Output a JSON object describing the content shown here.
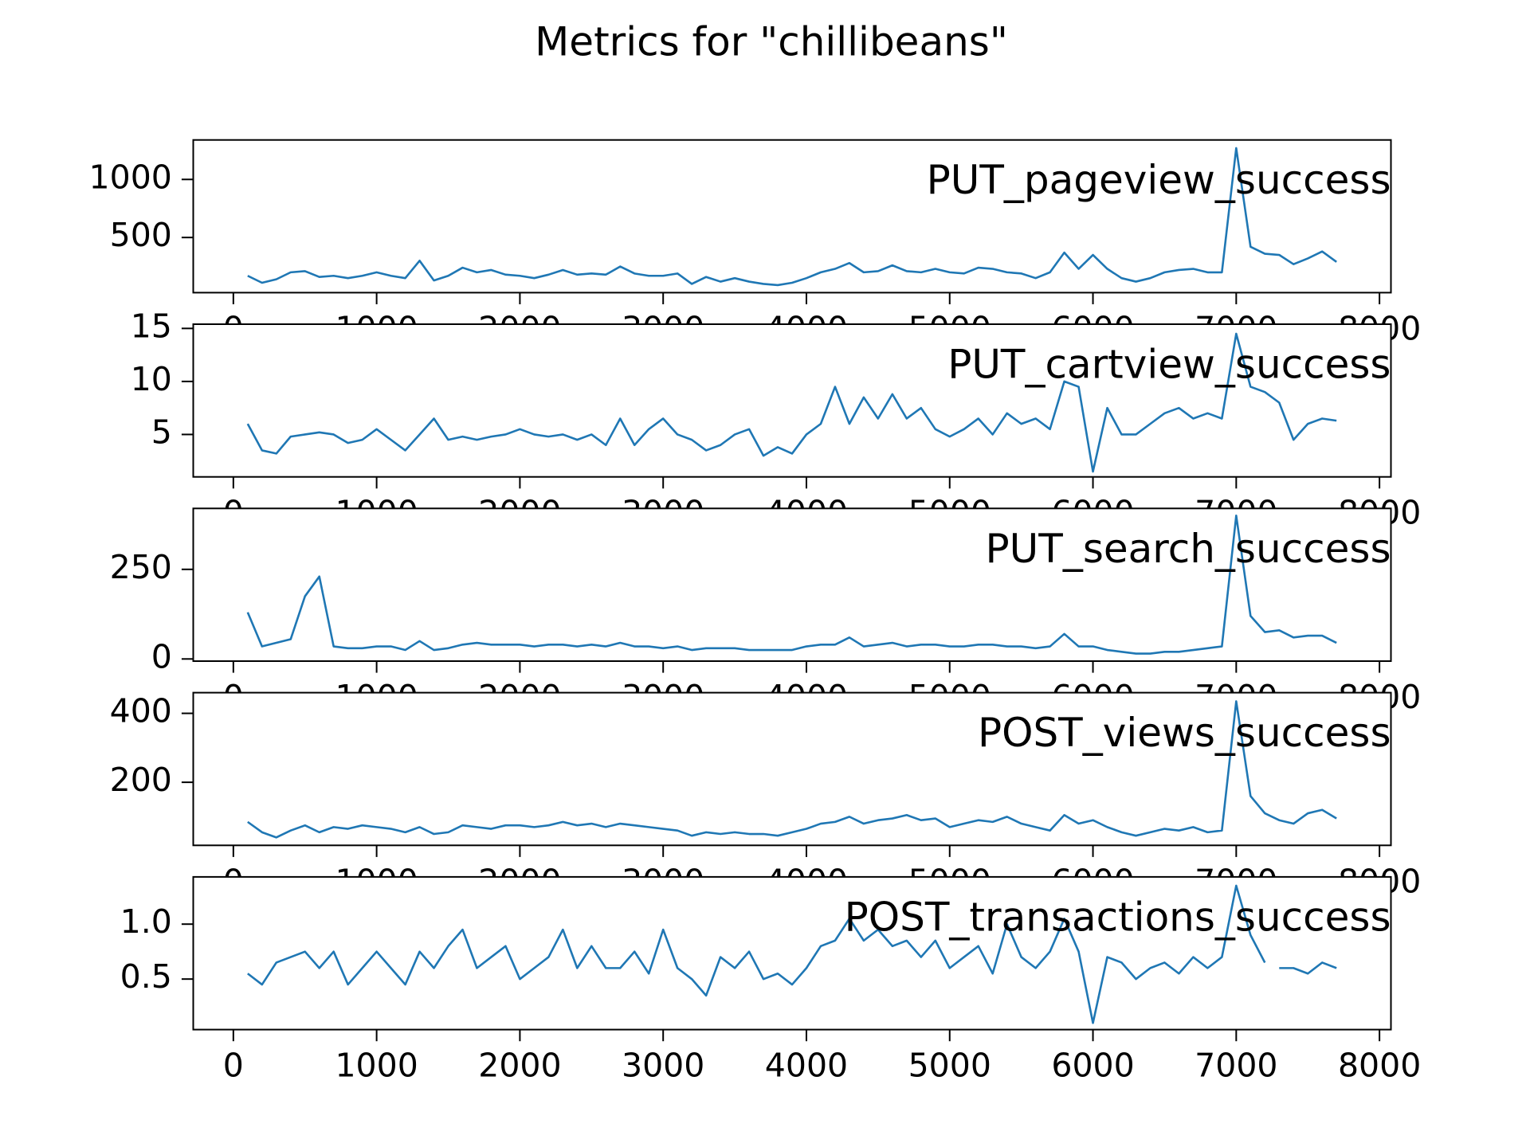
{
  "title": "Metrics for \"chillibeans\"",
  "chart_data": [
    {
      "type": "line",
      "annotation": "PUT_pageview_success",
      "x": [
        100,
        200,
        300,
        400,
        500,
        600,
        700,
        800,
        900,
        1000,
        1100,
        1200,
        1300,
        1400,
        1500,
        1600,
        1700,
        1800,
        1900,
        2000,
        2100,
        2200,
        2300,
        2400,
        2500,
        2600,
        2700,
        2800,
        2900,
        3000,
        3100,
        3200,
        3300,
        3400,
        3500,
        3600,
        3700,
        3800,
        3900,
        4000,
        4100,
        4200,
        4300,
        4400,
        4500,
        4600,
        4700,
        4800,
        4900,
        5000,
        5100,
        5200,
        5300,
        5400,
        5500,
        5600,
        5700,
        5800,
        5900,
        6000,
        6100,
        6200,
        6300,
        6400,
        6500,
        6600,
        6700,
        6800,
        6900,
        7000,
        7100,
        7200,
        7300,
        7400,
        7500,
        7600,
        7700
      ],
      "series": [
        {
          "color": "#1f77b4",
          "values": [
            170,
            110,
            140,
            200,
            210,
            160,
            170,
            150,
            170,
            200,
            170,
            150,
            300,
            130,
            170,
            240,
            200,
            220,
            180,
            170,
            150,
            180,
            220,
            180,
            190,
            180,
            250,
            190,
            170,
            170,
            190,
            100,
            160,
            120,
            150,
            120,
            100,
            90,
            110,
            150,
            200,
            230,
            280,
            200,
            210,
            260,
            210,
            200,
            230,
            200,
            190,
            240,
            230,
            200,
            190,
            150,
            200,
            370,
            230,
            350,
            230,
            150,
            120,
            150,
            200,
            220,
            230,
            200,
            200,
            1270,
            420,
            360,
            350,
            270,
            320,
            380,
            290
          ]
        }
      ],
      "xlim": [
        -280,
        8080
      ],
      "xticks": [
        0,
        1000,
        2000,
        3000,
        4000,
        5000,
        6000,
        7000,
        8000
      ],
      "ylim": [
        25,
        1340
      ],
      "yticks": [
        500,
        1000
      ]
    },
    {
      "type": "line",
      "annotation": "PUT_cartview_success",
      "x": [
        100,
        200,
        300,
        400,
        500,
        600,
        700,
        800,
        900,
        1000,
        1100,
        1200,
        1300,
        1400,
        1500,
        1600,
        1700,
        1800,
        1900,
        2000,
        2100,
        2200,
        2300,
        2400,
        2500,
        2600,
        2700,
        2800,
        2900,
        3000,
        3100,
        3200,
        3300,
        3400,
        3500,
        3600,
        3700,
        3800,
        3900,
        4000,
        4100,
        4200,
        4300,
        4400,
        4500,
        4600,
        4700,
        4800,
        4900,
        5000,
        5100,
        5200,
        5300,
        5400,
        5500,
        5600,
        5700,
        5800,
        5900,
        6000,
        6100,
        6200,
        6300,
        6400,
        6500,
        6600,
        6700,
        6800,
        6900,
        7000,
        7100,
        7200,
        7300,
        7400,
        7500,
        7600,
        7700
      ],
      "series": [
        {
          "color": "#1f77b4",
          "values": [
            6.0,
            3.5,
            3.2,
            4.8,
            5.0,
            5.2,
            5.0,
            4.2,
            4.5,
            5.5,
            4.5,
            3.5,
            5.0,
            6.5,
            4.5,
            4.8,
            4.5,
            4.8,
            5.0,
            5.5,
            5.0,
            4.8,
            5.0,
            4.5,
            5.0,
            4.0,
            6.5,
            4.0,
            5.5,
            6.5,
            5.0,
            4.5,
            3.5,
            4.0,
            5.0,
            5.5,
            3.0,
            3.8,
            3.2,
            5.0,
            6.0,
            9.5,
            6.0,
            8.5,
            6.5,
            8.8,
            6.5,
            7.5,
            5.5,
            4.8,
            5.5,
            6.5,
            5.0,
            7.0,
            6.0,
            6.5,
            5.5,
            10.0,
            9.5,
            1.5,
            7.5,
            5.0,
            5.0,
            6.0,
            7.0,
            7.5,
            6.5,
            7.0,
            6.5,
            14.5,
            9.5,
            9.0,
            8.0,
            4.5,
            6.0,
            6.5,
            6.3
          ]
        }
      ],
      "xlim": [
        -280,
        8080
      ],
      "xticks": [
        0,
        1000,
        2000,
        3000,
        4000,
        5000,
        6000,
        7000,
        8000
      ],
      "ylim": [
        1.0,
        15.4
      ],
      "yticks": [
        5,
        10,
        15
      ]
    },
    {
      "type": "line",
      "annotation": "PUT_search_success",
      "x": [
        100,
        200,
        300,
        400,
        500,
        600,
        700,
        800,
        900,
        1000,
        1100,
        1200,
        1300,
        1400,
        1500,
        1600,
        1700,
        1800,
        1900,
        2000,
        2100,
        2200,
        2300,
        2400,
        2500,
        2600,
        2700,
        2800,
        2900,
        3000,
        3100,
        3200,
        3300,
        3400,
        3500,
        3600,
        3700,
        3800,
        3900,
        4000,
        4100,
        4200,
        4300,
        4400,
        4500,
        4600,
        4700,
        4800,
        4900,
        5000,
        5100,
        5200,
        5300,
        5400,
        5500,
        5600,
        5700,
        5800,
        5900,
        6000,
        6100,
        6200,
        6300,
        6400,
        6500,
        6600,
        6700,
        6800,
        6900,
        7000,
        7100,
        7200,
        7300,
        7400,
        7500,
        7600,
        7700
      ],
      "series": [
        {
          "color": "#1f77b4",
          "values": [
            130,
            35,
            45,
            55,
            175,
            230,
            35,
            30,
            30,
            35,
            35,
            25,
            50,
            25,
            30,
            40,
            45,
            40,
            40,
            40,
            35,
            40,
            40,
            35,
            40,
            35,
            45,
            35,
            35,
            30,
            35,
            25,
            30,
            30,
            30,
            25,
            25,
            25,
            25,
            35,
            40,
            40,
            60,
            35,
            40,
            45,
            35,
            40,
            40,
            35,
            35,
            40,
            40,
            35,
            35,
            30,
            35,
            70,
            35,
            35,
            25,
            20,
            15,
            15,
            20,
            20,
            25,
            30,
            35,
            400,
            120,
            75,
            80,
            60,
            65,
            65,
            45
          ]
        }
      ],
      "xlim": [
        -280,
        8080
      ],
      "xticks": [
        0,
        1000,
        2000,
        3000,
        4000,
        5000,
        6000,
        7000,
        8000
      ],
      "ylim": [
        -6,
        420
      ],
      "yticks": [
        0,
        250
      ]
    },
    {
      "type": "line",
      "annotation": "POST_views_success",
      "x": [
        100,
        200,
        300,
        400,
        500,
        600,
        700,
        800,
        900,
        1000,
        1100,
        1200,
        1300,
        1400,
        1500,
        1600,
        1700,
        1800,
        1900,
        2000,
        2100,
        2200,
        2300,
        2400,
        2500,
        2600,
        2700,
        2800,
        2900,
        3000,
        3100,
        3200,
        3300,
        3400,
        3500,
        3600,
        3700,
        3800,
        3900,
        4000,
        4100,
        4200,
        4300,
        4400,
        4500,
        4600,
        4700,
        4800,
        4900,
        5000,
        5100,
        5200,
        5300,
        5400,
        5500,
        5600,
        5700,
        5800,
        5900,
        6000,
        6100,
        6200,
        6300,
        6400,
        6500,
        6600,
        6700,
        6800,
        6900,
        7000,
        7100,
        7200,
        7300,
        7400,
        7500,
        7600,
        7700
      ],
      "series": [
        {
          "color": "#1f77b4",
          "values": [
            85,
            55,
            40,
            60,
            75,
            55,
            70,
            65,
            75,
            70,
            65,
            55,
            70,
            50,
            55,
            75,
            70,
            65,
            75,
            75,
            70,
            75,
            85,
            75,
            80,
            70,
            80,
            75,
            70,
            65,
            60,
            45,
            55,
            50,
            55,
            50,
            50,
            45,
            55,
            65,
            80,
            85,
            100,
            80,
            90,
            95,
            105,
            90,
            95,
            70,
            80,
            90,
            85,
            100,
            80,
            70,
            60,
            105,
            80,
            90,
            70,
            55,
            45,
            55,
            65,
            60,
            70,
            55,
            60,
            435,
            160,
            110,
            90,
            80,
            110,
            120,
            95
          ]
        }
      ],
      "xlim": [
        -280,
        8080
      ],
      "xticks": [
        0,
        1000,
        2000,
        3000,
        4000,
        5000,
        6000,
        7000,
        8000
      ],
      "ylim": [
        17,
        460
      ],
      "yticks": [
        200,
        400
      ]
    },
    {
      "type": "line",
      "annotation": "POST_transactions_success",
      "x": [
        100,
        200,
        300,
        400,
        500,
        600,
        700,
        800,
        900,
        1000,
        1100,
        1200,
        1300,
        1400,
        1500,
        1600,
        1700,
        1800,
        1900,
        2000,
        2100,
        2200,
        2300,
        2400,
        2500,
        2600,
        2700,
        2800,
        2900,
        3000,
        3100,
        3200,
        3300,
        3400,
        3500,
        3600,
        3700,
        3800,
        3900,
        4000,
        4100,
        4200,
        4300,
        4400,
        4500,
        4600,
        4700,
        4800,
        4900,
        5000,
        5100,
        5200,
        5300,
        5400,
        5500,
        5600,
        5700,
        5800,
        5900,
        6000,
        6100,
        6200,
        6300,
        6400,
        6500,
        6600,
        6700,
        6800,
        6900,
        7000,
        7100,
        7200,
        7250,
        7300,
        7400,
        7500,
        7600,
        7700
      ],
      "series": [
        {
          "color": "#1f77b4",
          "values": [
            0.55,
            0.45,
            0.65,
            0.7,
            0.75,
            0.6,
            0.75,
            0.45,
            0.6,
            0.75,
            0.6,
            0.45,
            0.75,
            0.6,
            0.8,
            0.95,
            0.6,
            0.7,
            0.8,
            0.5,
            0.6,
            0.7,
            0.95,
            0.6,
            0.8,
            0.6,
            0.6,
            0.75,
            0.55,
            0.95,
            0.6,
            0.5,
            0.35,
            0.7,
            0.6,
            0.75,
            0.5,
            0.55,
            0.45,
            0.6,
            0.8,
            0.85,
            1.05,
            0.85,
            0.95,
            0.8,
            0.85,
            0.7,
            0.85,
            0.6,
            0.7,
            0.8,
            0.55,
            1.0,
            0.7,
            0.6,
            0.75,
            1.05,
            0.75,
            0.1,
            0.7,
            0.65,
            0.5,
            0.6,
            0.65,
            0.55,
            0.7,
            0.6,
            0.7,
            1.35,
            0.9,
            0.65,
            null,
            0.6,
            0.6,
            0.55,
            0.65,
            0.6
          ]
        }
      ],
      "xlim": [
        -280,
        8080
      ],
      "xticks": [
        0,
        1000,
        2000,
        3000,
        4000,
        5000,
        6000,
        7000,
        8000
      ],
      "ylim": [
        0.04,
        1.43
      ],
      "yticks": [
        0.5,
        {
          "value": 1,
          "label": "1.0"
        }
      ]
    }
  ]
}
